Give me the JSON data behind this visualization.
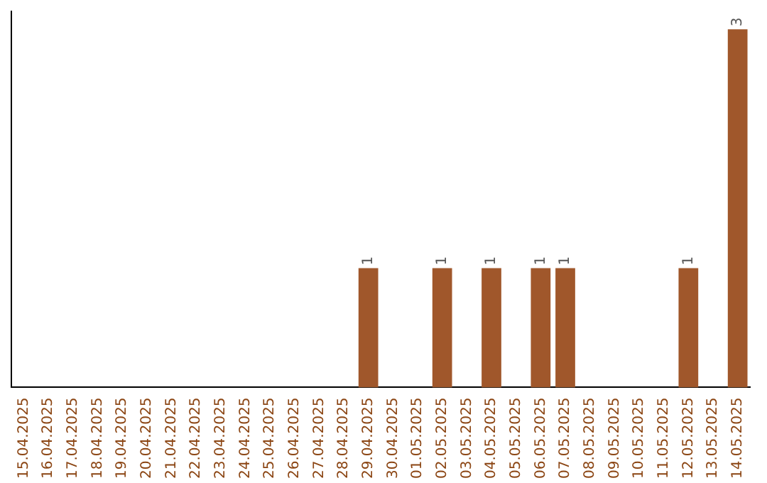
{
  "chart_data": {
    "type": "bar",
    "categories": [
      "15.04.2025",
      "16.04.2025",
      "17.04.2025",
      "18.04.2025",
      "19.04.2025",
      "20.04.2025",
      "21.04.2025",
      "22.04.2025",
      "23.04.2025",
      "24.04.2025",
      "25.04.2025",
      "26.04.2025",
      "27.04.2025",
      "28.04.2025",
      "29.04.2025",
      "30.04.2025",
      "01.05.2025",
      "02.05.2025",
      "03.05.2025",
      "04.05.2025",
      "05.05.2025",
      "06.05.2025",
      "07.05.2025",
      "08.05.2025",
      "09.05.2025",
      "10.05.2025",
      "11.05.2025",
      "12.05.2025",
      "13.05.2025",
      "14.05.2025"
    ],
    "values": [
      null,
      null,
      null,
      null,
      null,
      null,
      null,
      null,
      null,
      null,
      null,
      null,
      null,
      null,
      1,
      null,
      null,
      1,
      null,
      1,
      null,
      1,
      1,
      null,
      null,
      null,
      null,
      1,
      null,
      3
    ],
    "data_labels": true,
    "color": "#a0572b",
    "grid": false,
    "legend": false
  }
}
